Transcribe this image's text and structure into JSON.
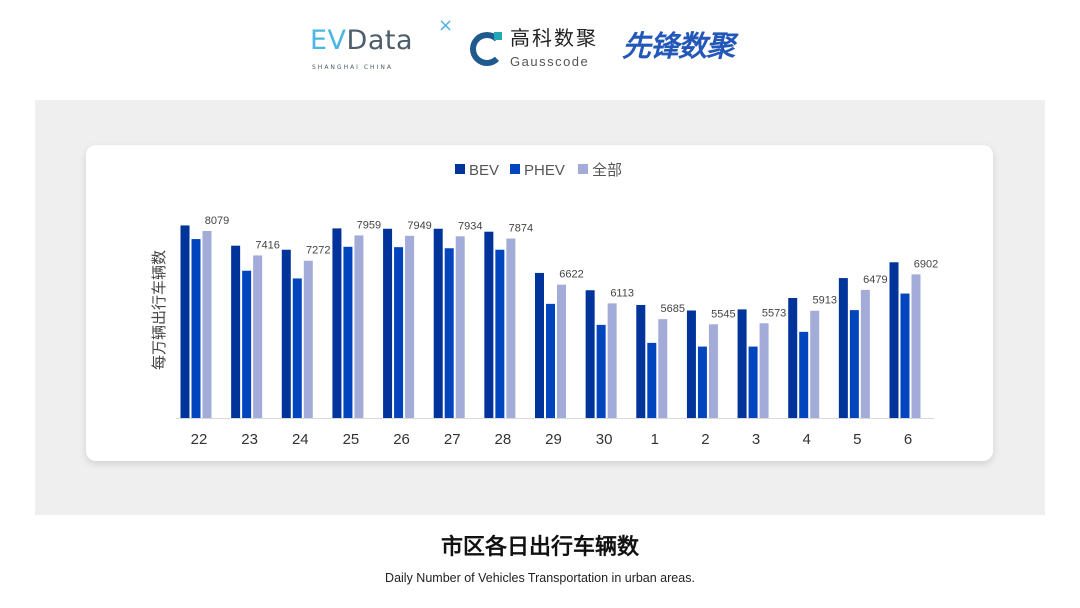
{
  "logos": {
    "evdata": {
      "ev": "EV",
      "data": "Data",
      "x": "×",
      "sub": "SHANGHAI CHINA"
    },
    "gausscode": {
      "cn": "高科数聚",
      "en": "Gausscode"
    },
    "xianfeng": "先锋数聚"
  },
  "title": "市区各日出行车辆数",
  "subtitle": "Daily Number of Vehicles Transportation in urban areas.",
  "chart_data": {
    "type": "bar",
    "title": "",
    "xlabel": "",
    "ylabel": "每万辆出行车辆数",
    "ylim": [
      3000,
      8500
    ],
    "grid": false,
    "legend_position": "top",
    "categories": [
      "22",
      "23",
      "24",
      "25",
      "26",
      "27",
      "28",
      "29",
      "30",
      "1",
      "2",
      "3",
      "4",
      "5",
      "6"
    ],
    "series": [
      {
        "name": "BEV",
        "color": "#00349a",
        "values": [
          8230,
          7680,
          7570,
          8150,
          8140,
          8140,
          8060,
          6940,
          6470,
          6070,
          5920,
          5950,
          6260,
          6800,
          7230
        ]
      },
      {
        "name": "PHEV",
        "color": "#0045bd",
        "values": [
          7860,
          7000,
          6790,
          7650,
          7640,
          7610,
          7570,
          6100,
          5530,
          5040,
          4940,
          4940,
          5340,
          5930,
          6380
        ]
      },
      {
        "name": "全部",
        "color": "#a3abd9",
        "values": [
          8079,
          7416,
          7272,
          7959,
          7949,
          7934,
          7874,
          6622,
          6113,
          5685,
          5545,
          5573,
          5913,
          6479,
          6902
        ],
        "data_labels": true
      }
    ]
  }
}
